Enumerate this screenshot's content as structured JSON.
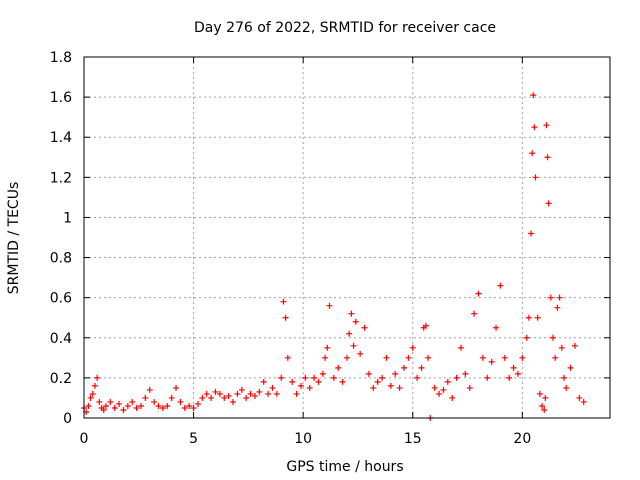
{
  "chart_data": {
    "type": "scatter",
    "title": "Day 276 of 2022, SRMTID for receiver cace",
    "xlabel": "GPS time / hours",
    "ylabel": "SRMTID / TECUs",
    "xlim": [
      0,
      24
    ],
    "ylim": [
      0,
      1.8
    ],
    "xticks": [
      0,
      5,
      10,
      15,
      20
    ],
    "xtick_labels": [
      "0",
      "5",
      "10",
      "15",
      "20"
    ],
    "yticks": [
      0,
      0.2,
      0.4,
      0.6,
      0.8,
      1.0,
      1.2,
      1.4,
      1.6,
      1.8
    ],
    "ytick_labels": [
      "0",
      "0.2",
      "0.4",
      "0.6",
      "0.8",
      "1",
      "1.2",
      "1.4",
      "1.6",
      "1.8"
    ],
    "grid": true,
    "marker": "plus",
    "color": "#ff0000",
    "series": [
      {
        "name": "SRMTID",
        "x": [
          0.0,
          0.1,
          0.2,
          0.3,
          0.4,
          0.5,
          0.6,
          0.7,
          0.8,
          0.9,
          1.0,
          1.2,
          1.4,
          1.6,
          1.8,
          2.0,
          2.2,
          2.4,
          2.6,
          2.8,
          3.0,
          3.2,
          3.4,
          3.6,
          3.8,
          4.0,
          4.2,
          4.4,
          4.6,
          4.8,
          5.0,
          5.2,
          5.4,
          5.6,
          5.8,
          6.0,
          6.2,
          6.4,
          6.6,
          6.8,
          7.0,
          7.2,
          7.4,
          7.6,
          7.8,
          8.0,
          8.2,
          8.4,
          8.6,
          8.8,
          9.0,
          9.1,
          9.2,
          9.3,
          9.5,
          9.7,
          9.9,
          10.1,
          10.3,
          10.5,
          10.7,
          10.9,
          11.0,
          11.1,
          11.2,
          11.4,
          11.6,
          11.8,
          12.0,
          12.1,
          12.2,
          12.3,
          12.4,
          12.6,
          12.8,
          13.0,
          13.2,
          13.4,
          13.6,
          13.8,
          14.0,
          14.2,
          14.4,
          14.6,
          14.8,
          15.0,
          15.2,
          15.4,
          15.5,
          15.6,
          15.7,
          15.8,
          16.0,
          16.2,
          16.4,
          16.6,
          16.8,
          17.0,
          17.2,
          17.4,
          17.6,
          17.8,
          18.0,
          18.2,
          18.4,
          18.6,
          18.8,
          19.0,
          19.2,
          19.4,
          19.6,
          19.8,
          20.0,
          20.2,
          20.3,
          20.4,
          20.45,
          20.5,
          20.55,
          20.6,
          20.7,
          20.8,
          20.9,
          21.0,
          21.05,
          21.1,
          21.15,
          21.2,
          21.3,
          21.4,
          21.5,
          21.6,
          21.7,
          21.8,
          21.9,
          22.0,
          22.2,
          22.4,
          22.6,
          22.8
        ],
        "y": [
          0.05,
          0.03,
          0.06,
          0.1,
          0.12,
          0.16,
          0.2,
          0.08,
          0.05,
          0.04,
          0.06,
          0.08,
          0.05,
          0.07,
          0.04,
          0.06,
          0.08,
          0.05,
          0.06,
          0.1,
          0.14,
          0.08,
          0.06,
          0.05,
          0.06,
          0.1,
          0.15,
          0.08,
          0.05,
          0.06,
          0.05,
          0.07,
          0.1,
          0.12,
          0.1,
          0.13,
          0.12,
          0.1,
          0.11,
          0.08,
          0.12,
          0.14,
          0.1,
          0.12,
          0.11,
          0.13,
          0.18,
          0.12,
          0.15,
          0.12,
          0.2,
          0.58,
          0.5,
          0.3,
          0.18,
          0.12,
          0.16,
          0.2,
          0.15,
          0.2,
          0.18,
          0.22,
          0.3,
          0.35,
          0.56,
          0.2,
          0.25,
          0.18,
          0.3,
          0.42,
          0.52,
          0.36,
          0.48,
          0.32,
          0.45,
          0.22,
          0.15,
          0.18,
          0.2,
          0.3,
          0.16,
          0.22,
          0.15,
          0.25,
          0.3,
          0.35,
          0.2,
          0.25,
          0.45,
          0.46,
          0.3,
          0.0,
          0.15,
          0.12,
          0.14,
          0.18,
          0.1,
          0.2,
          0.35,
          0.22,
          0.15,
          0.52,
          0.62,
          0.3,
          0.2,
          0.28,
          0.45,
          0.66,
          0.3,
          0.2,
          0.25,
          0.22,
          0.3,
          0.4,
          0.5,
          0.92,
          1.32,
          1.61,
          1.45,
          1.2,
          0.5,
          0.12,
          0.06,
          0.04,
          0.1,
          1.46,
          1.3,
          1.07,
          0.6,
          0.4,
          0.3,
          0.55,
          0.6,
          0.35,
          0.2,
          0.15,
          0.25,
          0.36,
          0.1,
          0.08
        ]
      }
    ]
  }
}
